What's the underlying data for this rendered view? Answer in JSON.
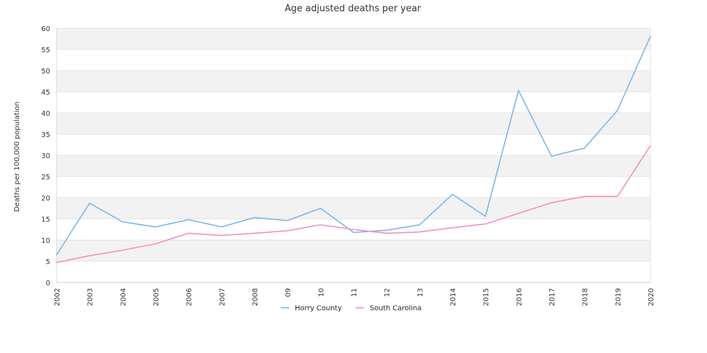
{
  "chart_data": {
    "type": "line",
    "title": "Age adjusted deaths per year",
    "xlabel": "",
    "ylabel": "Deaths per 100,000 population",
    "ylim": [
      0,
      60
    ],
    "yticks": [
      0,
      5,
      10,
      15,
      20,
      25,
      30,
      35,
      40,
      45,
      50,
      55,
      60
    ],
    "categories": [
      "2002",
      "2003",
      "2004",
      "2005",
      "2006",
      "2007",
      "2008",
      "09",
      "10",
      "11",
      "12",
      "13",
      "2014",
      "2015",
      "2016",
      "2017",
      "2018",
      "2019",
      "2020"
    ],
    "grid": "horizontal-alternating-bands",
    "legend": "bottom-center",
    "series": [
      {
        "name": "Horry County",
        "color": "#7cb5ec",
        "values": [
          6.5,
          18.7,
          14.3,
          13.1,
          14.8,
          13.1,
          15.3,
          14.6,
          17.5,
          11.8,
          12.3,
          13.6,
          20.8,
          15.6,
          45.3,
          29.8,
          31.7,
          40.6,
          58.1
        ]
      },
      {
        "name": "South Carolina",
        "color": "#f28fc3",
        "values": [
          4.7,
          6.3,
          7.6,
          9.1,
          11.6,
          11.1,
          11.6,
          12.2,
          13.6,
          12.5,
          11.6,
          11.9,
          12.9,
          13.8,
          16.3,
          18.8,
          20.3,
          20.3,
          32.3
        ]
      }
    ]
  }
}
